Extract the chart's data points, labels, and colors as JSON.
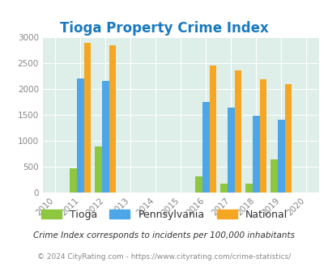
{
  "title": "Tioga Property Crime Index",
  "years": [
    2010,
    2011,
    2012,
    2013,
    2014,
    2015,
    2016,
    2017,
    2018,
    2019,
    2020
  ],
  "data_years": [
    2011,
    2012,
    2016,
    2017,
    2018,
    2019
  ],
  "tioga": [
    460,
    890,
    310,
    160,
    160,
    630
  ],
  "pennsylvania": [
    2200,
    2150,
    1750,
    1640,
    1490,
    1410
  ],
  "national": [
    2900,
    2850,
    2460,
    2360,
    2190,
    2100
  ],
  "tioga_color": "#8dc63f",
  "pa_color": "#4da6e8",
  "nat_color": "#f5a623",
  "bg_color": "#deeee8",
  "grid_color": "#ffffff",
  "title_color": "#1a7abf",
  "ylim": [
    0,
    3000
  ],
  "yticks": [
    0,
    500,
    1000,
    1500,
    2000,
    2500,
    3000
  ],
  "footnote1": "Crime Index corresponds to incidents per 100,000 inhabitants",
  "footnote2": "© 2024 CityRating.com - https://www.cityrating.com/crime-statistics/",
  "bar_width": 0.28
}
